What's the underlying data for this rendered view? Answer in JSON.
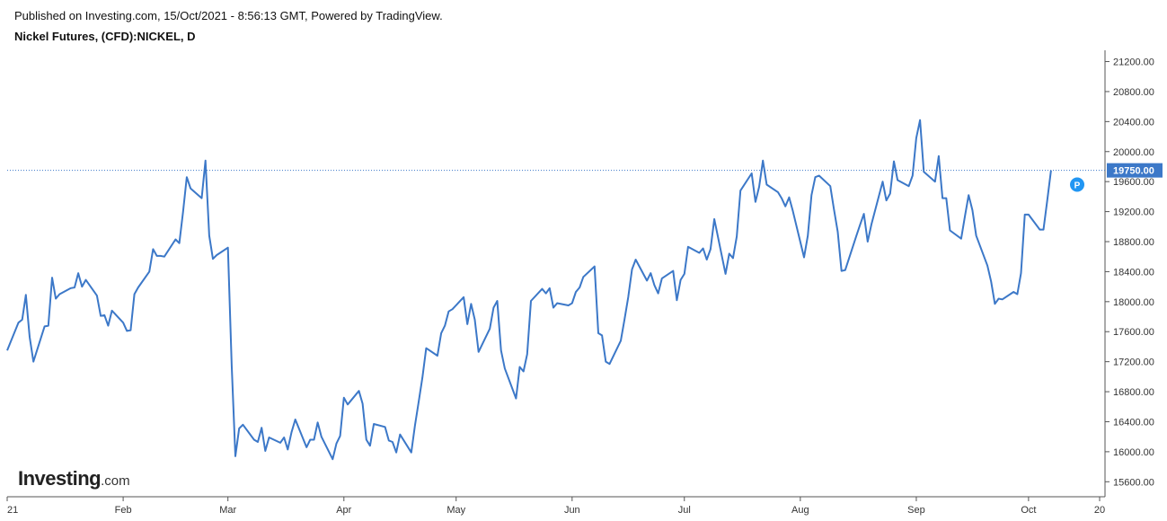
{
  "header": {
    "published": "Published on Investing.com, 15/Oct/2021 - 8:56:13 GMT, Powered by TradingView.",
    "instrument": "Nickel Futures, (CFD):NICKEL, D"
  },
  "logo": {
    "brand": "Investing",
    "suffix": ".com"
  },
  "colors": {
    "line": "#3c78c8",
    "price_tag": "#3c78c8",
    "marker": "#2196f3",
    "axis": "#555555"
  },
  "chart_data": {
    "type": "line",
    "title": "",
    "xlabel": "",
    "ylabel": "",
    "ylim": [
      15400,
      21350
    ],
    "y_ticks": [
      "21200.00",
      "20800.00",
      "20400.00",
      "20000.00",
      "19600.00",
      "19200.00",
      "18800.00",
      "18400.00",
      "18000.00",
      "17600.00",
      "17200.00",
      "16800.00",
      "16400.00",
      "16000.00",
      "15600.00"
    ],
    "x_ticks": [
      {
        "label": "21",
        "date": "2021-01-01"
      },
      {
        "label": "Feb",
        "date": "2021-02-01"
      },
      {
        "label": "Mar",
        "date": "2021-03-01"
      },
      {
        "label": "Apr",
        "date": "2021-04-01"
      },
      {
        "label": "May",
        "date": "2021-05-01"
      },
      {
        "label": "Jun",
        "date": "2021-06-01"
      },
      {
        "label": "Jul",
        "date": "2021-07-01"
      },
      {
        "label": "Aug",
        "date": "2021-08-01"
      },
      {
        "label": "Sep",
        "date": "2021-09-01"
      },
      {
        "label": "Oct",
        "date": "2021-10-01"
      },
      {
        "label": "20",
        "date": "2021-10-20"
      }
    ],
    "x_range": [
      "2021-01-01",
      "2021-10-20"
    ],
    "current_price": 19750,
    "current_price_label": "19750.00",
    "marker_label": "P",
    "marker_point": {
      "date": "2021-10-14",
      "value": 19560
    },
    "series": [
      {
        "values": [
          [
            "2021-01-01",
            17350
          ],
          [
            "2021-01-04",
            17720
          ],
          [
            "2021-01-05",
            17760
          ],
          [
            "2021-01-06",
            18090
          ],
          [
            "2021-01-07",
            17530
          ],
          [
            "2021-01-08",
            17200
          ],
          [
            "2021-01-11",
            17670
          ],
          [
            "2021-01-12",
            17680
          ],
          [
            "2021-01-13",
            18320
          ],
          [
            "2021-01-14",
            18040
          ],
          [
            "2021-01-15",
            18100
          ],
          [
            "2021-01-18",
            18180
          ],
          [
            "2021-01-19",
            18190
          ],
          [
            "2021-01-20",
            18380
          ],
          [
            "2021-01-21",
            18200
          ],
          [
            "2021-01-22",
            18290
          ],
          [
            "2021-01-25",
            18080
          ],
          [
            "2021-01-26",
            17810
          ],
          [
            "2021-01-27",
            17820
          ],
          [
            "2021-01-28",
            17680
          ],
          [
            "2021-01-29",
            17880
          ],
          [
            "2021-02-01",
            17720
          ],
          [
            "2021-02-02",
            17610
          ],
          [
            "2021-02-03",
            17620
          ],
          [
            "2021-02-04",
            18100
          ],
          [
            "2021-02-05",
            18190
          ],
          [
            "2021-02-08",
            18400
          ],
          [
            "2021-02-09",
            18700
          ],
          [
            "2021-02-10",
            18610
          ],
          [
            "2021-02-11",
            18610
          ],
          [
            "2021-02-12",
            18600
          ],
          [
            "2021-02-15",
            18830
          ],
          [
            "2021-02-16",
            18780
          ],
          [
            "2021-02-17",
            19190
          ],
          [
            "2021-02-18",
            19660
          ],
          [
            "2021-02-19",
            19510
          ],
          [
            "2021-02-22",
            19380
          ],
          [
            "2021-02-23",
            19880
          ],
          [
            "2021-02-24",
            18880
          ],
          [
            "2021-02-25",
            18570
          ],
          [
            "2021-02-26",
            18620
          ],
          [
            "2021-03-01",
            18720
          ],
          [
            "2021-03-02",
            17150
          ],
          [
            "2021-03-03",
            15940
          ],
          [
            "2021-03-04",
            16310
          ],
          [
            "2021-03-05",
            16360
          ],
          [
            "2021-03-08",
            16160
          ],
          [
            "2021-03-09",
            16130
          ],
          [
            "2021-03-10",
            16320
          ],
          [
            "2021-03-11",
            16010
          ],
          [
            "2021-03-12",
            16190
          ],
          [
            "2021-03-15",
            16120
          ],
          [
            "2021-03-16",
            16190
          ],
          [
            "2021-03-17",
            16030
          ],
          [
            "2021-03-18",
            16260
          ],
          [
            "2021-03-19",
            16430
          ],
          [
            "2021-03-22",
            16060
          ],
          [
            "2021-03-23",
            16160
          ],
          [
            "2021-03-24",
            16160
          ],
          [
            "2021-03-25",
            16390
          ],
          [
            "2021-03-26",
            16200
          ],
          [
            "2021-03-29",
            15900
          ],
          [
            "2021-03-30",
            16110
          ],
          [
            "2021-03-31",
            16210
          ],
          [
            "2021-04-01",
            16720
          ],
          [
            "2021-04-02",
            16630
          ],
          [
            "2021-04-05",
            16810
          ],
          [
            "2021-04-06",
            16640
          ],
          [
            "2021-04-07",
            16160
          ],
          [
            "2021-04-08",
            16080
          ],
          [
            "2021-04-09",
            16370
          ],
          [
            "2021-04-12",
            16330
          ],
          [
            "2021-04-13",
            16150
          ],
          [
            "2021-04-14",
            16130
          ],
          [
            "2021-04-15",
            15990
          ],
          [
            "2021-04-16",
            16230
          ],
          [
            "2021-04-19",
            15990
          ],
          [
            "2021-04-20",
            16350
          ],
          [
            "2021-04-21",
            16670
          ],
          [
            "2021-04-22",
            16990
          ],
          [
            "2021-04-23",
            17380
          ],
          [
            "2021-04-26",
            17280
          ],
          [
            "2021-04-27",
            17580
          ],
          [
            "2021-04-28",
            17680
          ],
          [
            "2021-04-29",
            17870
          ],
          [
            "2021-04-30",
            17900
          ],
          [
            "2021-05-03",
            18060
          ],
          [
            "2021-05-04",
            17700
          ],
          [
            "2021-05-05",
            17970
          ],
          [
            "2021-05-06",
            17760
          ],
          [
            "2021-05-07",
            17330
          ],
          [
            "2021-05-10",
            17640
          ],
          [
            "2021-05-11",
            17920
          ],
          [
            "2021-05-12",
            18010
          ],
          [
            "2021-05-13",
            17350
          ],
          [
            "2021-05-14",
            17110
          ],
          [
            "2021-05-17",
            16710
          ],
          [
            "2021-05-18",
            17130
          ],
          [
            "2021-05-19",
            17070
          ],
          [
            "2021-05-20",
            17300
          ],
          [
            "2021-05-21",
            18010
          ],
          [
            "2021-05-24",
            18170
          ],
          [
            "2021-05-25",
            18110
          ],
          [
            "2021-05-26",
            18180
          ],
          [
            "2021-05-27",
            17920
          ],
          [
            "2021-05-28",
            17980
          ],
          [
            "2021-05-31",
            17950
          ],
          [
            "2021-06-01",
            17980
          ],
          [
            "2021-06-02",
            18130
          ],
          [
            "2021-06-03",
            18190
          ],
          [
            "2021-06-04",
            18330
          ],
          [
            "2021-06-07",
            18470
          ],
          [
            "2021-06-08",
            17580
          ],
          [
            "2021-06-09",
            17550
          ],
          [
            "2021-06-10",
            17200
          ],
          [
            "2021-06-11",
            17170
          ],
          [
            "2021-06-14",
            17480
          ],
          [
            "2021-06-15",
            17760
          ],
          [
            "2021-06-16",
            18060
          ],
          [
            "2021-06-17",
            18430
          ],
          [
            "2021-06-18",
            18560
          ],
          [
            "2021-06-21",
            18280
          ],
          [
            "2021-06-22",
            18380
          ],
          [
            "2021-06-23",
            18220
          ],
          [
            "2021-06-24",
            18110
          ],
          [
            "2021-06-25",
            18310
          ],
          [
            "2021-06-28",
            18410
          ],
          [
            "2021-06-29",
            18020
          ],
          [
            "2021-06-30",
            18290
          ],
          [
            "2021-07-01",
            18370
          ],
          [
            "2021-07-02",
            18730
          ],
          [
            "2021-07-05",
            18650
          ],
          [
            "2021-07-06",
            18710
          ],
          [
            "2021-07-07",
            18560
          ],
          [
            "2021-07-08",
            18700
          ],
          [
            "2021-07-09",
            19100
          ],
          [
            "2021-07-12",
            18370
          ],
          [
            "2021-07-13",
            18640
          ],
          [
            "2021-07-14",
            18580
          ],
          [
            "2021-07-15",
            18870
          ],
          [
            "2021-07-16",
            19480
          ],
          [
            "2021-07-19",
            19710
          ],
          [
            "2021-07-20",
            19330
          ],
          [
            "2021-07-21",
            19530
          ],
          [
            "2021-07-22",
            19880
          ],
          [
            "2021-07-23",
            19560
          ],
          [
            "2021-07-26",
            19460
          ],
          [
            "2021-07-27",
            19380
          ],
          [
            "2021-07-28",
            19270
          ],
          [
            "2021-07-29",
            19390
          ],
          [
            "2021-07-30",
            19210
          ],
          [
            "2021-08-02",
            18590
          ],
          [
            "2021-08-03",
            18880
          ],
          [
            "2021-08-04",
            19420
          ],
          [
            "2021-08-05",
            19660
          ],
          [
            "2021-08-06",
            19680
          ],
          [
            "2021-08-09",
            19540
          ],
          [
            "2021-08-10",
            19230
          ],
          [
            "2021-08-11",
            18930
          ],
          [
            "2021-08-12",
            18410
          ],
          [
            "2021-08-13",
            18420
          ],
          [
            "2021-08-16",
            18880
          ],
          [
            "2021-08-17",
            19030
          ],
          [
            "2021-08-18",
            19170
          ],
          [
            "2021-08-19",
            18800
          ],
          [
            "2021-08-20",
            19030
          ],
          [
            "2021-08-23",
            19600
          ],
          [
            "2021-08-24",
            19350
          ],
          [
            "2021-08-25",
            19440
          ],
          [
            "2021-08-26",
            19870
          ],
          [
            "2021-08-27",
            19620
          ],
          [
            "2021-08-30",
            19540
          ],
          [
            "2021-08-31",
            19680
          ],
          [
            "2021-09-01",
            20180
          ],
          [
            "2021-09-02",
            20420
          ],
          [
            "2021-09-03",
            19730
          ],
          [
            "2021-09-06",
            19600
          ],
          [
            "2021-09-07",
            19940
          ],
          [
            "2021-09-08",
            19380
          ],
          [
            "2021-09-09",
            19380
          ],
          [
            "2021-09-10",
            18950
          ],
          [
            "2021-09-13",
            18840
          ],
          [
            "2021-09-14",
            19140
          ],
          [
            "2021-09-15",
            19420
          ],
          [
            "2021-09-16",
            19220
          ],
          [
            "2021-09-17",
            18880
          ],
          [
            "2021-09-20",
            18480
          ],
          [
            "2021-09-21",
            18270
          ],
          [
            "2021-09-22",
            17970
          ],
          [
            "2021-09-23",
            18040
          ],
          [
            "2021-09-24",
            18030
          ],
          [
            "2021-09-27",
            18130
          ],
          [
            "2021-09-28",
            18100
          ],
          [
            "2021-09-29",
            18380
          ],
          [
            "2021-09-30",
            19160
          ],
          [
            "2021-10-01",
            19160
          ],
          [
            "2021-10-04",
            18960
          ],
          [
            "2021-10-05",
            18960
          ],
          [
            "2021-10-06",
            19350
          ],
          [
            "2021-10-07",
            19750
          ]
        ]
      }
    ]
  }
}
